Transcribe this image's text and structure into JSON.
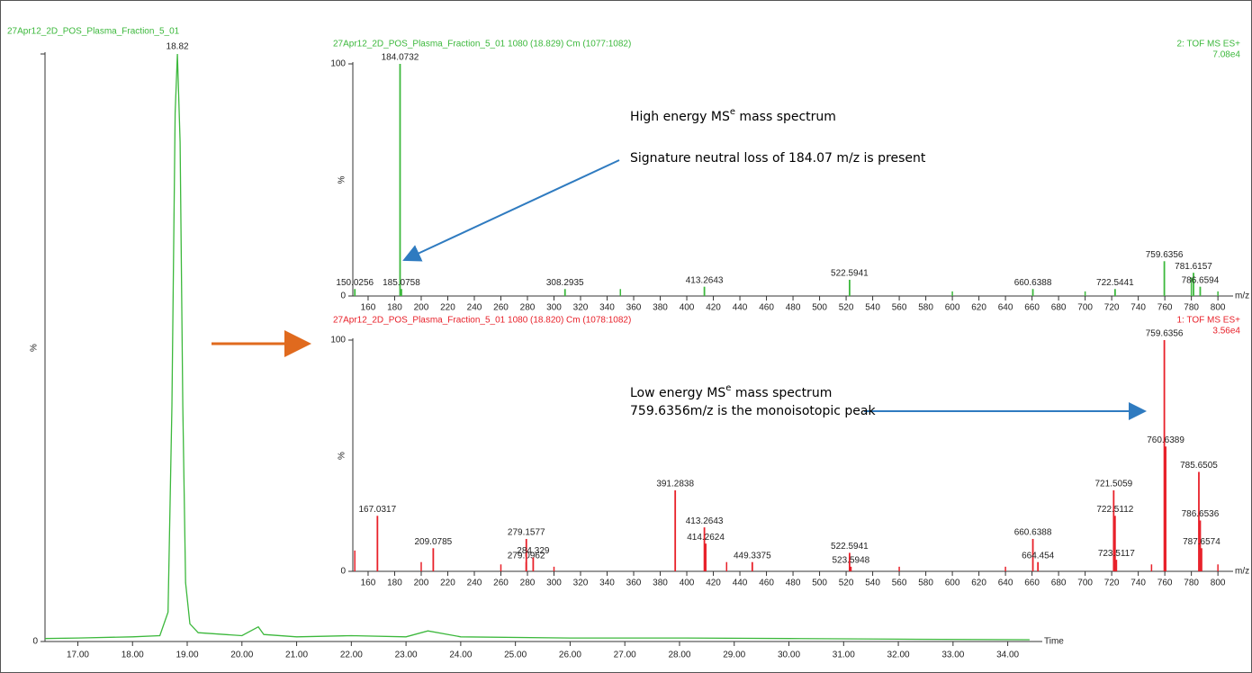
{
  "chart_data": [
    {
      "type": "line",
      "title": "27Apr12_2D_POS_Plasma_Fraction_5_01",
      "x_label": "Time",
      "y_label": "%",
      "color": "#3cb83c",
      "peak_label": 18.82,
      "x": [
        16.4,
        17,
        18,
        18.5,
        18.65,
        18.72,
        18.78,
        18.82,
        18.87,
        18.92,
        18.97,
        19.05,
        19.2,
        20,
        20.3,
        20.4,
        21,
        22,
        23,
        23.4,
        24,
        26,
        28,
        30,
        32,
        34.4
      ],
      "values": [
        0.5,
        0.6,
        0.8,
        1,
        5,
        40,
        90,
        100,
        85,
        40,
        10,
        3,
        1.5,
        1,
        2.5,
        1.2,
        0.8,
        1,
        0.8,
        1.8,
        0.8,
        0.6,
        0.6,
        0.5,
        0.4,
        0.3
      ],
      "xlim": [
        16.4,
        34.5
      ],
      "ylim": [
        0,
        100
      ],
      "xticks": [
        {
          "value": 17,
          "label": "17.00"
        },
        {
          "value": 18,
          "label": "18.00"
        },
        {
          "value": 19,
          "label": "19.00"
        },
        {
          "value": 20,
          "label": "20.00"
        },
        {
          "value": 21,
          "label": "21.00"
        },
        {
          "value": 22,
          "label": "22.00"
        },
        {
          "value": 23,
          "label": "23.00"
        },
        {
          "value": 24,
          "label": "24.00"
        },
        {
          "value": 25,
          "label": "25.00"
        },
        {
          "value": 26,
          "label": "26.00"
        },
        {
          "value": 27,
          "label": "27.00"
        },
        {
          "value": 28,
          "label": "28.00"
        },
        {
          "value": 29,
          "label": "29.00"
        },
        {
          "value": 30,
          "label": "30.00"
        },
        {
          "value": 31,
          "label": "31.00"
        },
        {
          "value": 32,
          "label": "32.00"
        },
        {
          "value": 33,
          "label": "33.00"
        },
        {
          "value": 34,
          "label": "34.00"
        }
      ],
      "yticks": [
        0
      ]
    },
    {
      "type": "bar",
      "title": "27Apr12_2D_POS_Plasma_Fraction_5_01 1080 (18.829) Cm (1077:1082)",
      "scan": "2: TOF MS ES+",
      "intensity": "7.08e4",
      "x_label": "m/z",
      "y_label": "%",
      "color": "#3cb83c",
      "annotation": {
        "before": "High energy MS",
        "superscript": "e",
        "after": " mass spectrum"
      },
      "arrow_note": "Signature neutral loss of 184.07 m/z is present",
      "x": [
        150.0256,
        184.0732,
        185.0758,
        308.2935,
        413.2643,
        522.5941,
        660.6388,
        722.5441,
        759.6356,
        781.6157,
        786.6594
      ],
      "values": [
        3,
        100,
        3,
        3,
        4,
        7,
        3,
        3,
        15,
        10,
        4
      ],
      "minor_x": [
        350,
        600,
        700,
        780,
        800
      ],
      "minor_values": [
        3,
        2,
        2,
        8,
        2
      ],
      "xlim": [
        148.5,
        806
      ],
      "ylim": [
        0,
        100
      ],
      "xticks": [
        160,
        180,
        200,
        220,
        240,
        260,
        280,
        300,
        320,
        340,
        360,
        380,
        400,
        420,
        440,
        460,
        480,
        500,
        520,
        540,
        560,
        580,
        600,
        620,
        640,
        660,
        680,
        700,
        720,
        740,
        760,
        780,
        800
      ],
      "yticks": [
        0,
        100
      ]
    },
    {
      "type": "bar",
      "title": "27Apr12_2D_POS_Plasma_Fraction_5_01 1080 (18.820) Cm (1078:1082)",
      "scan": "1: TOF MS ES+",
      "intensity": "3.56e4",
      "x_label": "m/z",
      "y_label": "%",
      "color": "#e8212a",
      "annotation": {
        "before": "Low energy MS",
        "superscript": "e",
        "after": " mass spectrum"
      },
      "arrow_note": "759.6356m/z is the monoisotopic peak",
      "x": [
        167.0317,
        209.0785,
        279.0962,
        279.1577,
        284.329,
        391.2838,
        413.2643,
        414.2624,
        449.3375,
        522.5941,
        523.5948,
        660.6388,
        664.454,
        721.5059,
        722.5112,
        723.5117,
        759.6356,
        760.6389,
        785.6505,
        786.6536,
        787.6574
      ],
      "values": [
        24,
        10,
        4,
        14,
        6,
        35,
        19,
        12,
        4,
        8,
        2,
        14,
        4,
        35,
        24,
        5,
        100,
        54,
        43,
        22,
        10
      ],
      "minor_x": [
        150,
        200,
        260,
        300,
        430,
        560,
        640,
        750,
        800
      ],
      "minor_values": [
        9,
        4,
        3,
        2,
        4,
        2,
        2,
        3,
        3
      ],
      "xlim": [
        148.5,
        806
      ],
      "ylim": [
        0,
        100
      ],
      "xticks": [
        160,
        180,
        200,
        220,
        240,
        260,
        280,
        300,
        320,
        340,
        360,
        380,
        400,
        420,
        440,
        460,
        480,
        500,
        520,
        540,
        560,
        580,
        600,
        620,
        640,
        660,
        680,
        700,
        720,
        740,
        760,
        780,
        800
      ],
      "yticks": [
        0,
        100
      ]
    }
  ]
}
